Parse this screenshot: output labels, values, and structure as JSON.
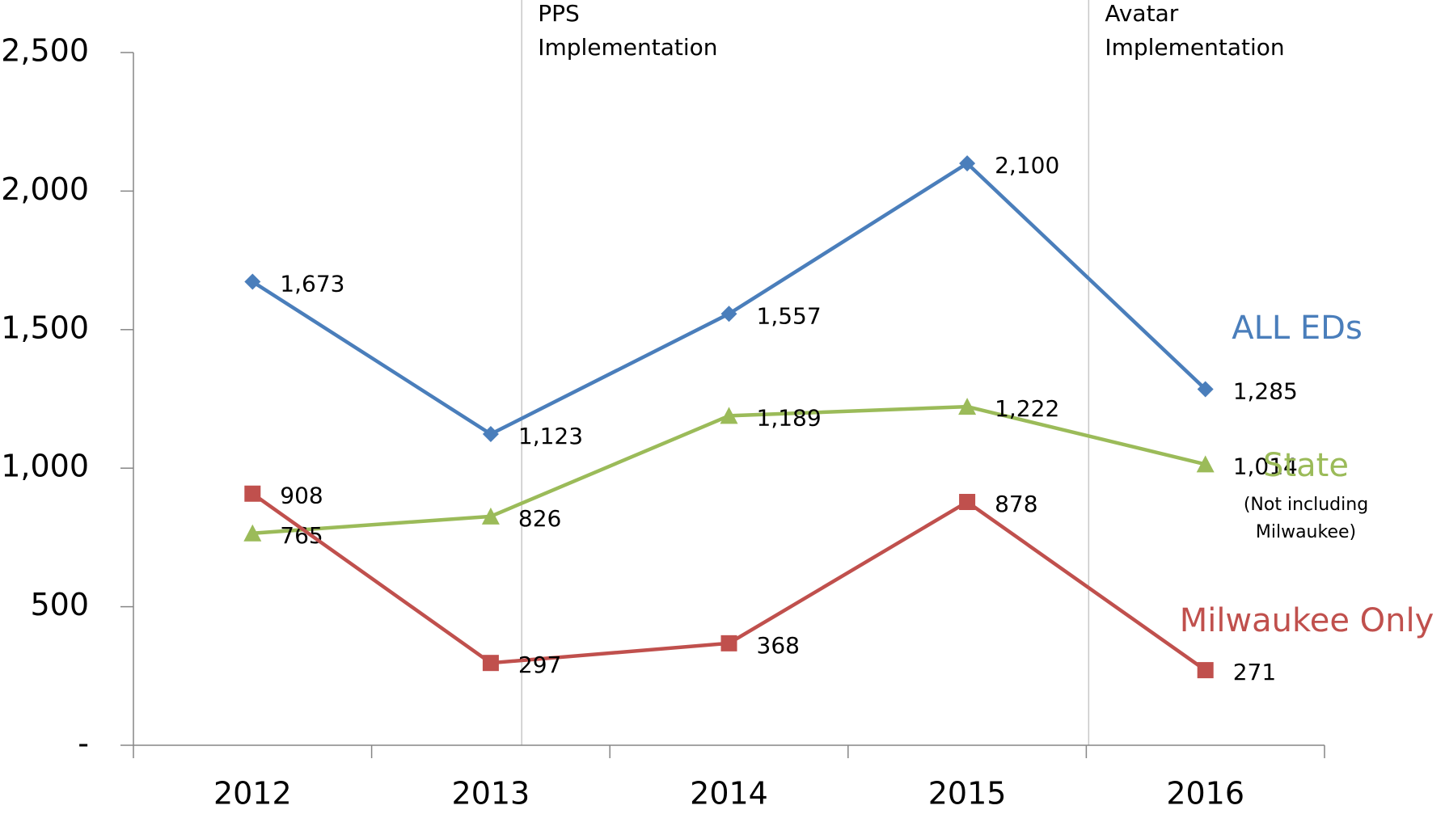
{
  "chart_data": {
    "type": "line",
    "categories": [
      "2012",
      "2013",
      "2014",
      "2015",
      "2016"
    ],
    "series": [
      {
        "name": "ALL EDs",
        "color": "#4a7ebb",
        "marker": "diamond",
        "values": [
          1673,
          1123,
          1557,
          2100,
          1285
        ],
        "value_labels": [
          "1,673",
          "1,123",
          "1,557",
          "2,100",
          "1,285"
        ]
      },
      {
        "name": "State",
        "note": [
          "(Not including",
          "Milwaukee)"
        ],
        "color": "#9bbb59",
        "marker": "triangle",
        "values": [
          765,
          826,
          1189,
          1222,
          1014
        ],
        "value_labels": [
          "765",
          "826",
          "1,189",
          "1,222",
          "1,014"
        ]
      },
      {
        "name": "Milwaukee Only",
        "color": "#c0504d",
        "marker": "square",
        "values": [
          908,
          297,
          368,
          878,
          271
        ],
        "value_labels": [
          "908",
          "297",
          "368",
          "878",
          "271"
        ]
      }
    ],
    "annotations": [
      {
        "lines": [
          "PPS",
          "Implementation"
        ]
      },
      {
        "lines": [
          "Avatar",
          "Implementation"
        ]
      }
    ],
    "ylim": [
      0,
      2500
    ],
    "yticks": [
      {
        "value": 0,
        "label": "-"
      },
      500,
      {
        "value": 1000,
        "label": "1,000"
      },
      {
        "value": 1500,
        "label": "1,500"
      },
      {
        "value": 2000,
        "label": "2,000"
      },
      {
        "value": 2500,
        "label": "2,500"
      }
    ],
    "grid": false
  }
}
